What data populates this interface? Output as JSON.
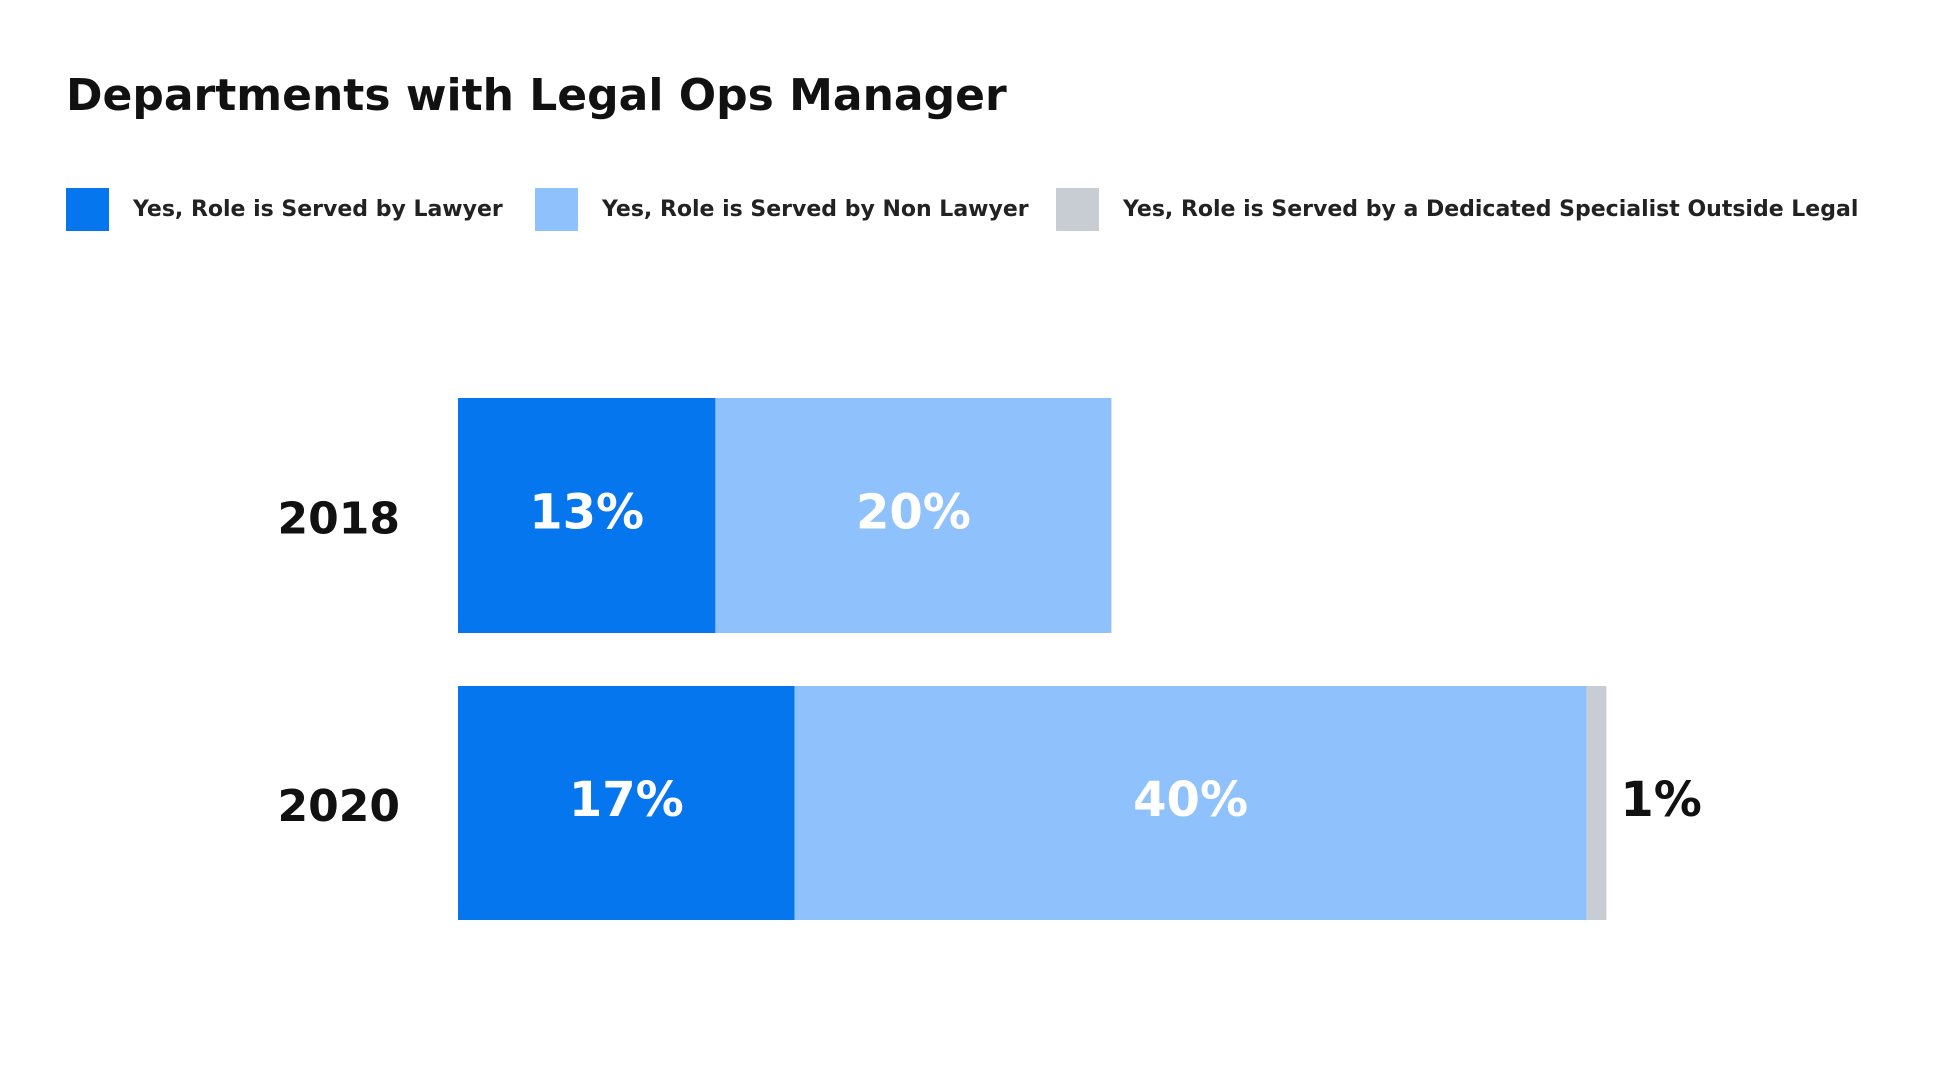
{
  "chart_data": {
    "type": "stacked-bar",
    "title": "Departments with Legal Ops Manager",
    "categories": [
      "2018",
      "2020"
    ],
    "series": [
      {
        "name": "Yes, Role is Served by Lawyer",
        "color": "#0676ee",
        "values": [
          13,
          17
        ],
        "value_labels": [
          "13%",
          "17%"
        ]
      },
      {
        "name": "Yes, Role is Served by Non Lawyer",
        "color": "#8fc1fc",
        "values": [
          20,
          40
        ],
        "value_labels": [
          "20%",
          "40%"
        ]
      },
      {
        "name": "Yes, Role is Served by a Dedicated Specialist Outside Legal",
        "color": "#c8ccd3",
        "values": [
          null,
          1
        ],
        "value_labels": [
          null,
          "1%"
        ]
      }
    ]
  }
}
